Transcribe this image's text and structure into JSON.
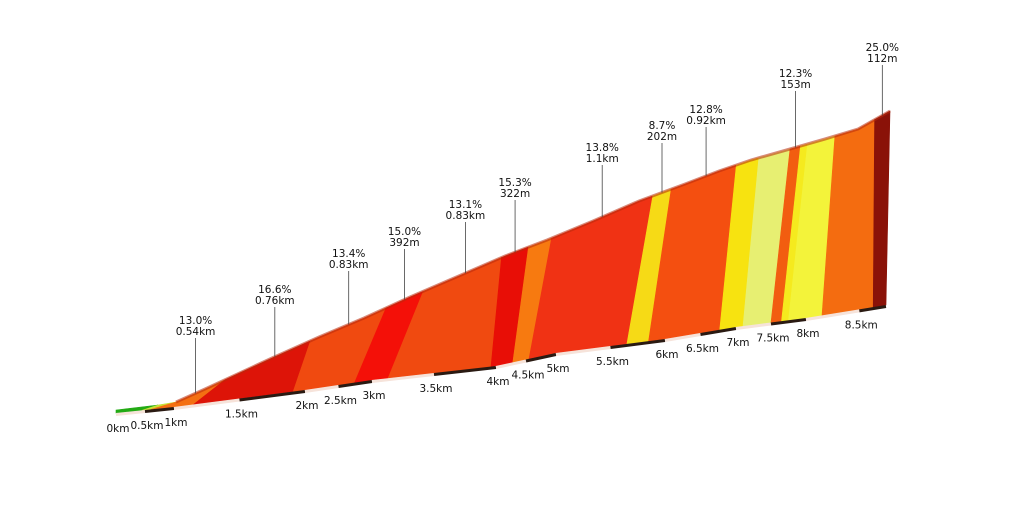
{
  "chart_data": {
    "type": "area",
    "x_unit": "km",
    "total_distance_km": 8.75,
    "distance_labels": [
      "0km",
      "0.5km",
      "1km",
      "1.5km",
      "2km",
      "2.5km",
      "3km",
      "3.5km",
      "4km",
      "4.5km",
      "5km",
      "5.5km",
      "6km",
      "6.5km",
      "7km",
      "7.5km",
      "8km",
      "8.5km"
    ],
    "segments": [
      {
        "from_km": 0.0,
        "to_km": 0.45,
        "color": "#22aa14"
      },
      {
        "from_km": 0.45,
        "to_km": 0.6,
        "color": "#c6e236"
      },
      {
        "from_km": 0.6,
        "to_km": 1.15,
        "color": "#f46f12"
      },
      {
        "from_km": 1.15,
        "to_km": 1.91,
        "color": "#dd1408"
      },
      {
        "from_km": 1.91,
        "to_km": 2.74,
        "color": "#f04a10"
      },
      {
        "from_km": 2.74,
        "to_km": 3.13,
        "color": "#f41008"
      },
      {
        "from_km": 3.13,
        "to_km": 3.96,
        "color": "#f04a10"
      },
      {
        "from_km": 3.96,
        "to_km": 4.28,
        "color": "#e80e06"
      },
      {
        "from_km": 4.28,
        "to_km": 4.55,
        "color": "#f77a10"
      },
      {
        "from_km": 4.55,
        "to_km": 5.65,
        "color": "#f03214"
      },
      {
        "from_km": 5.65,
        "to_km": 5.85,
        "color": "#f6da16"
      },
      {
        "from_km": 5.85,
        "to_km": 6.77,
        "color": "#f44f10"
      },
      {
        "from_km": 6.77,
        "to_km": 7.1,
        "color": "#f7e310"
      },
      {
        "from_km": 7.1,
        "to_km": 7.5,
        "color": "#e7ef72"
      },
      {
        "from_km": 7.5,
        "to_km": 7.65,
        "color": "#f25d10"
      },
      {
        "from_km": 7.65,
        "to_km": 7.75,
        "color": "#f5ea1e"
      },
      {
        "from_km": 7.75,
        "to_km": 8.15,
        "color": "#f3f33a"
      },
      {
        "from_km": 8.15,
        "to_km": 8.63,
        "color": "#f46c10"
      },
      {
        "from_km": 8.63,
        "to_km": 8.75,
        "color": "#8a1208"
      }
    ],
    "annotations": [
      {
        "x_km": 0.87,
        "grade": "13.0%",
        "length": "0.54km"
      },
      {
        "x_km": 1.53,
        "grade": "16.6%",
        "length": "0.76km"
      },
      {
        "x_km": 2.33,
        "grade": "13.4%",
        "length": "0.83km"
      },
      {
        "x_km": 2.94,
        "grade": "15.0%",
        "length": "392m"
      },
      {
        "x_km": 3.55,
        "grade": "13.1%",
        "length": "0.83km"
      },
      {
        "x_km": 4.12,
        "grade": "15.3%",
        "length": "322m"
      },
      {
        "x_km": 5.1,
        "grade": "13.8%",
        "length": "1.1km"
      },
      {
        "x_km": 5.75,
        "grade": "8.7%",
        "length": "202m"
      },
      {
        "x_km": 6.31,
        "grade": "12.8%",
        "length": "0.92km"
      },
      {
        "x_km": 7.58,
        "grade": "12.3%",
        "length": "153m"
      },
      {
        "x_km": 8.69,
        "grade": "25.0%",
        "length": "112m"
      }
    ],
    "colors": {
      "top_edge": "#b82a0c",
      "base_dark": "#2a1a12",
      "base_light": "#f6e3da",
      "label_line": "#444444"
    }
  }
}
